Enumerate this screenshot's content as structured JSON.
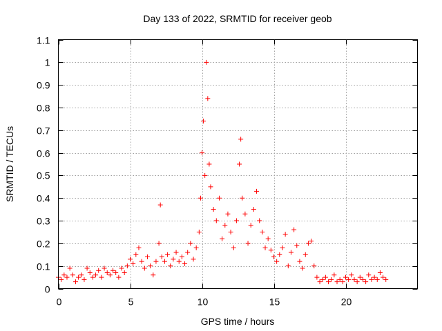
{
  "chart_data": {
    "type": "scatter",
    "title": "Day 133 of 2022, SRMTID for receiver geob",
    "xlabel": "GPS time / hours",
    "ylabel": "SRMTID / TECUs",
    "xlim": [
      0,
      25
    ],
    "ylim": [
      0,
      1.1
    ],
    "grid": true,
    "marker": "+",
    "xticks": [
      0,
      5,
      10,
      15,
      20
    ],
    "xtick_labels": [
      "0",
      "5",
      "10",
      "15",
      "20"
    ],
    "yticks": [
      0,
      0.1,
      0.2,
      0.3,
      0.4,
      0.5,
      0.6,
      0.7,
      0.8,
      0.9,
      1,
      1.1
    ],
    "ytick_labels": [
      "0",
      "0.1",
      "0.2",
      "0.3",
      "0.4",
      "0.5",
      "0.6",
      "0.7",
      "0.8",
      "0.9",
      "1",
      "1.1"
    ],
    "series": [
      {
        "name": "SRMTID",
        "color": "#ff0000",
        "x": [
          0.0,
          0.2,
          0.4,
          0.6,
          0.8,
          1.0,
          1.2,
          1.4,
          1.6,
          1.8,
          2.0,
          2.2,
          2.4,
          2.6,
          2.8,
          3.0,
          3.2,
          3.4,
          3.6,
          3.8,
          4.0,
          4.2,
          4.4,
          4.6,
          4.8,
          5.0,
          5.2,
          5.4,
          5.6,
          5.8,
          6.0,
          6.2,
          6.4,
          6.6,
          6.8,
          7.0,
          7.1,
          7.2,
          7.4,
          7.6,
          7.8,
          8.0,
          8.2,
          8.4,
          8.6,
          8.8,
          9.0,
          9.2,
          9.4,
          9.6,
          9.8,
          9.9,
          10.0,
          10.1,
          10.2,
          10.3,
          10.4,
          10.5,
          10.6,
          10.8,
          11.0,
          11.2,
          11.4,
          11.6,
          11.8,
          12.0,
          12.2,
          12.4,
          12.6,
          12.7,
          12.8,
          13.0,
          13.2,
          13.4,
          13.6,
          13.8,
          14.0,
          14.2,
          14.4,
          14.6,
          14.8,
          15.0,
          15.2,
          15.4,
          15.6,
          15.8,
          16.0,
          16.2,
          16.4,
          16.6,
          16.8,
          17.0,
          17.2,
          17.4,
          17.6,
          17.8,
          18.0,
          18.2,
          18.4,
          18.6,
          18.8,
          19.0,
          19.2,
          19.4,
          19.6,
          19.8,
          20.0,
          20.2,
          20.4,
          20.6,
          20.8,
          21.0,
          21.2,
          21.4,
          21.6,
          21.8,
          22.0,
          22.2,
          22.4,
          22.6,
          22.8
        ],
        "y": [
          0.05,
          0.04,
          0.06,
          0.05,
          0.09,
          0.06,
          0.03,
          0.05,
          0.06,
          0.04,
          0.09,
          0.07,
          0.05,
          0.06,
          0.08,
          0.05,
          0.09,
          0.07,
          0.06,
          0.08,
          0.07,
          0.05,
          0.09,
          0.07,
          0.1,
          0.13,
          0.11,
          0.15,
          0.18,
          0.12,
          0.09,
          0.14,
          0.1,
          0.06,
          0.12,
          0.2,
          0.37,
          0.14,
          0.12,
          0.15,
          0.1,
          0.13,
          0.16,
          0.12,
          0.14,
          0.11,
          0.16,
          0.2,
          0.13,
          0.18,
          0.25,
          0.4,
          0.6,
          0.74,
          0.5,
          1.0,
          0.84,
          0.55,
          0.45,
          0.35,
          0.3,
          0.4,
          0.22,
          0.28,
          0.33,
          0.25,
          0.18,
          0.3,
          0.55,
          0.66,
          0.4,
          0.33,
          0.2,
          0.28,
          0.35,
          0.43,
          0.3,
          0.25,
          0.18,
          0.22,
          0.17,
          0.14,
          0.12,
          0.15,
          0.18,
          0.24,
          0.1,
          0.16,
          0.26,
          0.19,
          0.12,
          0.09,
          0.15,
          0.2,
          0.21,
          0.1,
          0.05,
          0.03,
          0.04,
          0.05,
          0.03,
          0.04,
          0.06,
          0.03,
          0.04,
          0.03,
          0.05,
          0.04,
          0.06,
          0.04,
          0.03,
          0.05,
          0.04,
          0.03,
          0.06,
          0.04,
          0.05,
          0.04,
          0.07,
          0.05,
          0.04
        ]
      }
    ]
  }
}
